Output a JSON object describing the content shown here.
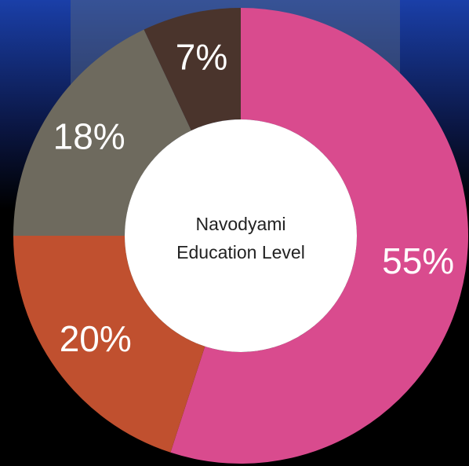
{
  "chart_data": {
    "type": "donut",
    "title": [
      "Navodyami",
      "Education Level"
    ],
    "values": [
      55,
      20,
      18,
      7
    ],
    "value_labels": [
      "55%",
      "20%",
      "18%",
      "7%"
    ],
    "colors": [
      "#d94b8e",
      "#c0502f",
      "#6e6a5e",
      "#4a342c"
    ]
  }
}
